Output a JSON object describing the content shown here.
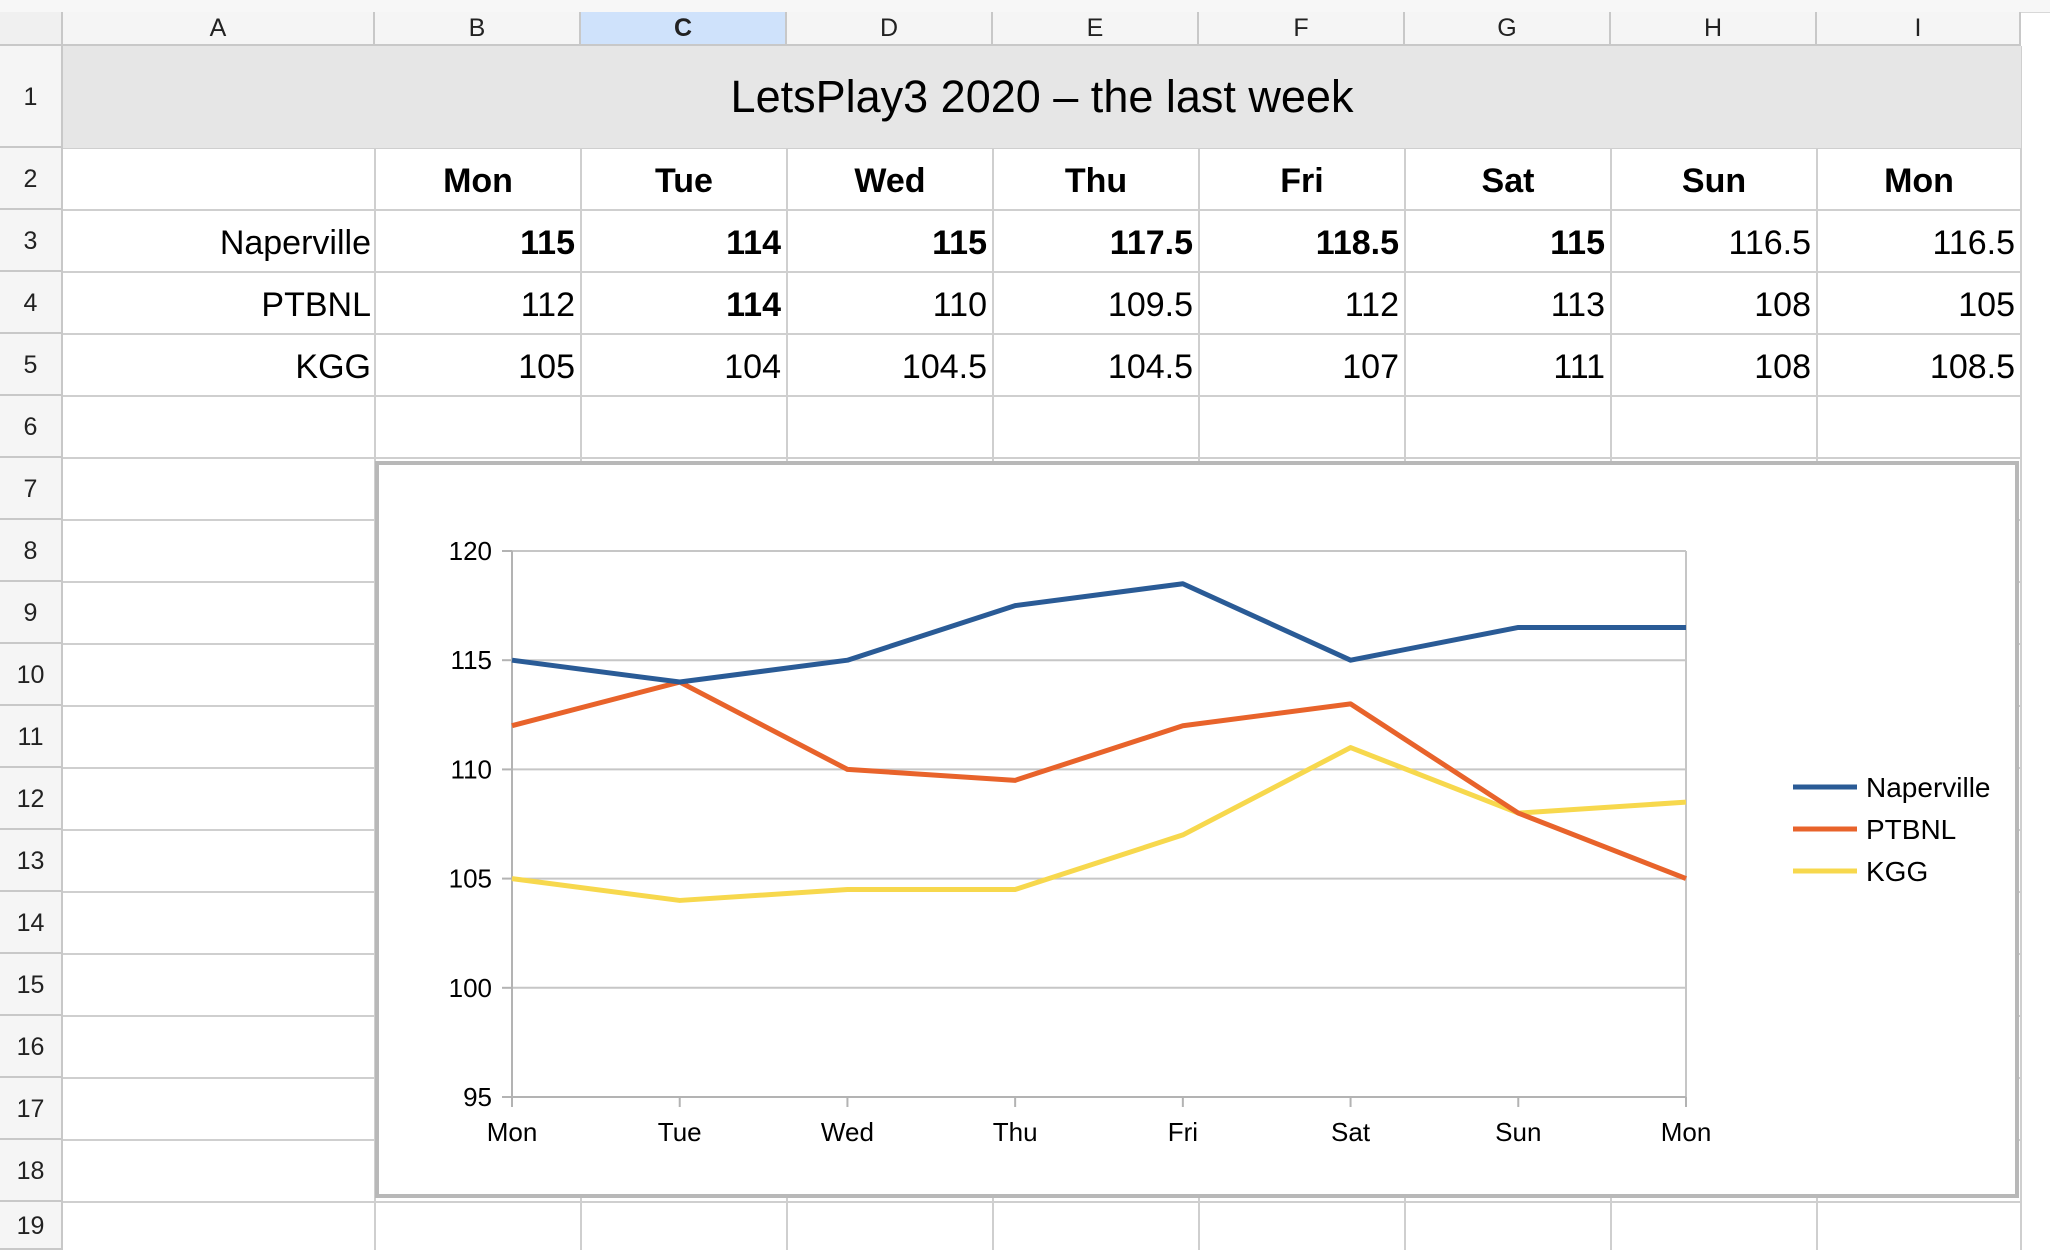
{
  "columns": [
    "A",
    "B",
    "C",
    "D",
    "E",
    "F",
    "G",
    "H",
    "I"
  ],
  "selected_column": "C",
  "rows": [
    "1",
    "2",
    "3",
    "4",
    "5",
    "6",
    "7",
    "8",
    "9",
    "10",
    "11",
    "12",
    "13",
    "14",
    "15",
    "16",
    "17",
    "18",
    "19"
  ],
  "table": {
    "title": "LetsPlay3 2020 – the last week",
    "day_headers": [
      "Mon",
      "Tue",
      "Wed",
      "Thu",
      "Fri",
      "Sat",
      "Sun",
      "Mon"
    ],
    "data_rows": [
      {
        "label": "Naperville",
        "values": [
          "115",
          "114",
          "115",
          "117.5",
          "118.5",
          "115",
          "116.5",
          "116.5"
        ],
        "bold": [
          true,
          true,
          true,
          true,
          true,
          true,
          false,
          false
        ]
      },
      {
        "label": "PTBNL",
        "values": [
          "112",
          "114",
          "110",
          "109.5",
          "112",
          "113",
          "108",
          "105"
        ],
        "bold": [
          false,
          true,
          false,
          false,
          false,
          false,
          false,
          false
        ]
      },
      {
        "label": "KGG",
        "values": [
          "105",
          "104",
          "104.5",
          "104.5",
          "107",
          "111",
          "108",
          "108.5"
        ],
        "bold": [
          false,
          false,
          false,
          false,
          false,
          false,
          false,
          false
        ]
      }
    ]
  },
  "chart_data": {
    "type": "line",
    "categories": [
      "Mon",
      "Tue",
      "Wed",
      "Thu",
      "Fri",
      "Sat",
      "Sun",
      "Mon"
    ],
    "series": [
      {
        "name": "Naperville",
        "color": "#2a5b96",
        "values": [
          115,
          114,
          115,
          117.5,
          118.5,
          115,
          116.5,
          116.5
        ]
      },
      {
        "name": "PTBNL",
        "color": "#e8632b",
        "values": [
          112,
          114,
          110,
          109.5,
          112,
          113,
          108,
          105
        ]
      },
      {
        "name": "KGG",
        "color": "#f7d84d",
        "values": [
          105,
          104,
          104.5,
          104.5,
          107,
          111,
          108,
          108.5
        ]
      }
    ],
    "ylim": [
      95,
      120
    ],
    "yticks": [
      95,
      100,
      105,
      110,
      115,
      120
    ],
    "title": "",
    "xlabel": "",
    "ylabel": "",
    "grid": "horizontal",
    "legend": "right"
  }
}
